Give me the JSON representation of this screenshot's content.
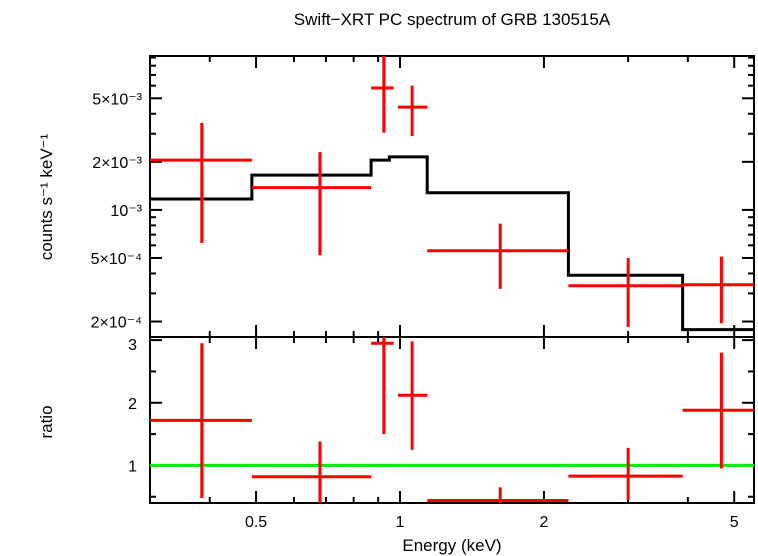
{
  "chart_data": [
    {
      "type": "scatter",
      "title": "Swift−XRT PC spectrum of GRB 130515A",
      "xlabel": "Energy (keV)",
      "ylabel": "counts s⁻¹ keV⁻¹",
      "x_scale": "log",
      "y_scale": "log",
      "xlim": [
        0.3,
        5.5
      ],
      "ylim": [
        0.00016,
        0.0092
      ],
      "y_tick_labels": [
        "2×10⁻⁴",
        "5×10⁻⁴",
        "10⁻³",
        "2×10⁻³",
        "5×10⁻³"
      ],
      "y_tick_values": [
        0.0002,
        0.0005,
        0.001,
        0.002,
        0.005
      ],
      "colors": {
        "data": "#ff0000",
        "model": "#000000"
      },
      "data_points": [
        {
          "x": 0.385,
          "xlo": 0.3,
          "xhi": 0.49,
          "y": 0.00205,
          "ylo": 0.00062,
          "yhi": 0.0035
        },
        {
          "x": 0.68,
          "xlo": 0.49,
          "xhi": 0.87,
          "y": 0.00138,
          "ylo": 0.00052,
          "yhi": 0.0023
        },
        {
          "x": 0.925,
          "xlo": 0.87,
          "xhi": 0.97,
          "y": 0.0058,
          "ylo": 0.00305,
          "yhi": 0.0094
        },
        {
          "x": 1.06,
          "xlo": 0.99,
          "xhi": 1.14,
          "y": 0.0044,
          "ylo": 0.0029,
          "yhi": 0.006
        },
        {
          "x": 1.62,
          "xlo": 1.14,
          "xhi": 2.25,
          "y": 0.000555,
          "ylo": 0.00032,
          "yhi": 0.00082
        },
        {
          "x": 3.0,
          "xlo": 2.25,
          "xhi": 3.9,
          "y": 0.000335,
          "ylo": 0.000185,
          "yhi": 0.0005
        },
        {
          "x": 4.7,
          "xlo": 3.9,
          "xhi": 5.5,
          "y": 0.00034,
          "ylo": 0.000195,
          "yhi": 0.00051
        }
      ],
      "model_steps": [
        {
          "xlo": 0.3,
          "xhi": 0.49,
          "y": 0.00117
        },
        {
          "xlo": 0.49,
          "xhi": 0.87,
          "y": 0.00165
        },
        {
          "xlo": 0.87,
          "xhi": 0.95,
          "y": 0.00205
        },
        {
          "xlo": 0.95,
          "xhi": 1.14,
          "y": 0.00215
        },
        {
          "xlo": 1.14,
          "xhi": 2.25,
          "y": 0.00128
        },
        {
          "xlo": 2.25,
          "xhi": 3.9,
          "y": 0.00039
        },
        {
          "xlo": 3.9,
          "xhi": 5.5,
          "y": 0.000178
        }
      ]
    },
    {
      "type": "scatter",
      "title": "",
      "xlabel": "Energy (keV)",
      "ylabel": "ratio",
      "x_scale": "log",
      "y_scale": "linear",
      "xlim": [
        0.3,
        5.5
      ],
      "ylim": [
        0.4,
        3.05
      ],
      "x_tick_labels": [
        "0.5",
        "1",
        "2",
        "5"
      ],
      "x_tick_values": [
        0.5,
        1,
        2,
        5
      ],
      "y_tick_labels": [
        "1",
        "2",
        "3"
      ],
      "y_tick_values": [
        1,
        2,
        3
      ],
      "reference_line": 1,
      "colors": {
        "data": "#ff0000",
        "reference": "#00ee00"
      },
      "data_points": [
        {
          "x": 0.385,
          "xlo": 0.3,
          "xhi": 0.49,
          "y": 1.72,
          "ylo": 0.48,
          "yhi": 2.95
        },
        {
          "x": 0.68,
          "xlo": 0.49,
          "xhi": 0.87,
          "y": 0.82,
          "ylo": 0.38,
          "yhi": 1.38
        },
        {
          "x": 0.925,
          "xlo": 0.87,
          "xhi": 0.97,
          "y": 2.95,
          "ylo": 1.5,
          "yhi": 3.1
        },
        {
          "x": 1.06,
          "xlo": 0.99,
          "xhi": 1.14,
          "y": 2.12,
          "ylo": 1.25,
          "yhi": 2.98
        },
        {
          "x": 1.62,
          "xlo": 1.14,
          "xhi": 2.25,
          "y": 0.44,
          "ylo": 0.4,
          "yhi": 0.65
        },
        {
          "x": 3.0,
          "xlo": 2.25,
          "xhi": 3.9,
          "y": 0.83,
          "ylo": 0.45,
          "yhi": 1.28
        },
        {
          "x": 4.7,
          "xlo": 3.9,
          "xhi": 5.5,
          "y": 1.88,
          "ylo": 0.95,
          "yhi": 2.8
        }
      ]
    }
  ]
}
